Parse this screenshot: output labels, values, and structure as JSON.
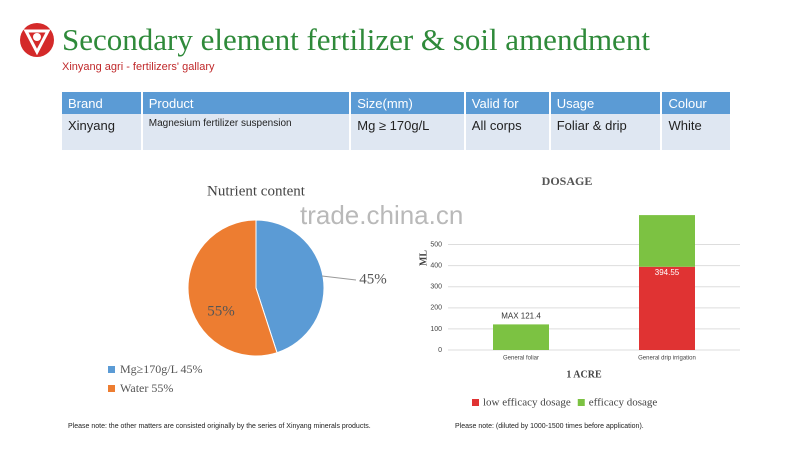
{
  "header": {
    "title": "Secondary element fertilizer & soil amendment",
    "subtitle": "Xinyang agri - fertilizers' gallary"
  },
  "table": {
    "columns": [
      "Brand",
      "Product",
      "Size(mm)",
      "Valid for",
      "Usage",
      "Colour"
    ],
    "rows": [
      [
        "Xinyang",
        "Magnesium fertilizer suspension",
        "Mg ≥ 170g/L",
        "All corps",
        "Foliar & drip",
        "White"
      ]
    ]
  },
  "pie_chart": {
    "type": "pie",
    "title": "Nutrient content",
    "labels": [
      "Mg≥170g/L 45%",
      "Water 55%"
    ],
    "values": [
      45,
      55
    ],
    "value_labels": [
      "45%",
      "55%"
    ],
    "colors": [
      "#5b9bd5",
      "#ed7d31"
    ]
  },
  "bar_chart": {
    "type": "stacked-bar",
    "title": "DOSAGE",
    "y_label": "ML",
    "x_label": "1 ACRE",
    "categories": [
      "General foliar",
      "General drip irrigation"
    ],
    "series": [
      {
        "name": "low efficacy dosage",
        "color": "#e03333",
        "values": [
          null,
          394.55
        ]
      },
      {
        "name": "efficacy dosage",
        "color": "#7cc242",
        "values": [
          121.4,
          245
        ],
        "value_labels": [
          "MAX 121.4",
          null
        ]
      }
    ],
    "ylim": [
      0,
      640
    ],
    "yticks": [
      0,
      100,
      200,
      300,
      400,
      500
    ],
    "grid": true
  },
  "watermark": "trade.china.cn",
  "notes": [
    "Please note: the other matters are consisted originally by the series of Xinyang minerals products.",
    "Please note: (diluted by 1000-1500 times before application)."
  ]
}
